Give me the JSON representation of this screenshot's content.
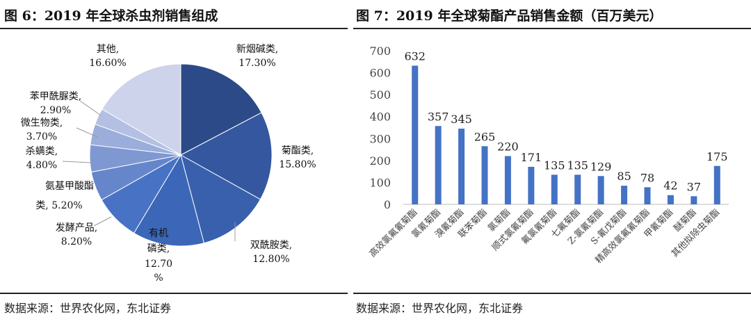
{
  "left": {
    "title": "图 6：2019 年全球杀虫剂销售组成",
    "source": "数据来源：世界农化网，东北证券"
  },
  "right": {
    "title": "图 7：2019 年全球菊酯产品销售金额（百万美元）",
    "source": "数据来源：世界农化网，东北证券"
  },
  "chart_data": [
    {
      "type": "pie",
      "title": "2019 年全球杀虫剂销售组成",
      "start": "12 o'clock, clockwise",
      "slices": [
        {
          "label": "新烟碱类,",
          "value": 17.3,
          "text": "17.30%",
          "color": "#2B4A87"
        },
        {
          "label": "菊酯类,",
          "value": 15.8,
          "text": "15.80%",
          "color": "#3457A0"
        },
        {
          "label": "双酰胺类,",
          "value": 12.8,
          "text": "12.80%",
          "color": "#3860AC"
        },
        {
          "label": "有机磷类,",
          "value": 12.7,
          "text": "12.70%",
          "color": "#3C67B8"
        },
        {
          "label": "发酵产品,",
          "value": 8.2,
          "text": "8.20%",
          "color": "#4873C5"
        },
        {
          "label": "氨基甲酸酯类,",
          "value": 5.2,
          "text": "5.20%",
          "color": "#6686CB"
        },
        {
          "label": "杀螨类,",
          "value": 4.8,
          "text": "4.80%",
          "color": "#7F98D2"
        },
        {
          "label": "微生物类,",
          "value": 3.7,
          "text": "3.70%",
          "color": "#9BADDB"
        },
        {
          "label": "苯甲酰脲类,",
          "value": 2.9,
          "text": "2.90%",
          "color": "#B3BFE3"
        },
        {
          "label": "其他,",
          "value": 16.6,
          "text": "16.60%",
          "color": "#CDD3EA"
        }
      ]
    },
    {
      "type": "bar",
      "title": "2019 年全球菊酯产品销售金额（百万美元）",
      "categories": [
        "高效氯氟氰菊酯",
        "氯氰菊酯",
        "溴氰菊酯",
        "联苯菊酯",
        "氯菊酯",
        "顺式氯氰菊酯",
        "氟氯氰菊酯",
        "七氟菊酯",
        "Z-氯氰菊酯",
        "S-氰戊菊酯",
        "精高效氯氟氰菊酯",
        "甲氰菊酯",
        "醚菊酯",
        "其他拟除虫菊酯"
      ],
      "values": [
        632,
        357,
        345,
        265,
        220,
        171,
        135,
        135,
        129,
        85,
        78,
        42,
        37,
        175
      ],
      "yticks": [
        0,
        100,
        200,
        300,
        400,
        500,
        600,
        700
      ],
      "ylim": [
        0,
        700
      ],
      "grid": false,
      "color": "#4472C4"
    }
  ]
}
